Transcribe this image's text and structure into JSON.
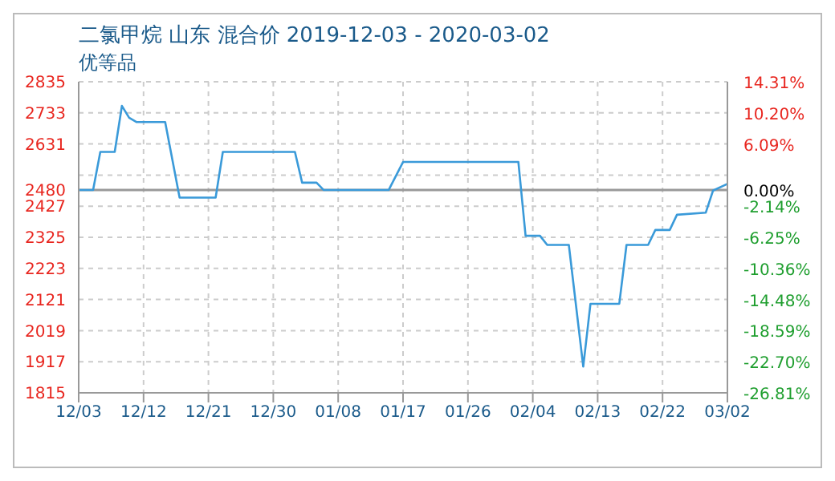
{
  "chart_data": {
    "type": "line",
    "title": "二氯甲烷 山东 混合价 2019-12-03 - 2020-03-02",
    "subtitle": "优等品",
    "x": [
      "2019-12-03",
      "2019-12-05",
      "2019-12-06",
      "2019-12-08",
      "2019-12-09",
      "2019-12-10",
      "2019-12-11",
      "2019-12-15",
      "2019-12-17",
      "2019-12-22",
      "2019-12-23",
      "2020-01-02",
      "2020-01-03",
      "2020-01-05",
      "2020-01-06",
      "2020-01-15",
      "2020-01-17",
      "2020-02-02",
      "2020-02-03",
      "2020-02-05",
      "2020-02-06",
      "2020-02-09",
      "2020-02-11",
      "2020-02-12",
      "2020-02-16",
      "2020-02-17",
      "2020-02-20",
      "2020-02-21",
      "2020-02-23",
      "2020-02-24",
      "2020-02-28",
      "2020-02-29",
      "2020-03-02"
    ],
    "series": [
      {
        "color": "#3a9ad9",
        "values": [
          2480,
          2480,
          2605,
          2605,
          2756,
          2717,
          2703,
          2703,
          2455,
          2455,
          2605,
          2605,
          2504,
          2504,
          2480,
          2480,
          2572,
          2572,
          2330,
          2330,
          2300,
          2300,
          1901,
          2107,
          2107,
          2300,
          2300,
          2349,
          2349,
          2399,
          2406,
          2478,
          2500
        ]
      }
    ],
    "xlim": [
      "2019-12-03",
      "2020-03-02"
    ],
    "xticks": [
      {
        "value": "2019-12-03",
        "label": "12/03"
      },
      {
        "value": "2019-12-12",
        "label": "12/12"
      },
      {
        "value": "2019-12-21",
        "label": "12/21"
      },
      {
        "value": "2019-12-30",
        "label": "12/30"
      },
      {
        "value": "2020-01-08",
        "label": "01/08"
      },
      {
        "value": "2020-01-17",
        "label": "01/17"
      },
      {
        "value": "2020-01-26",
        "label": "01/26"
      },
      {
        "value": "2020-02-04",
        "label": "02/04"
      },
      {
        "value": "2020-02-13",
        "label": "02/13"
      },
      {
        "value": "2020-02-22",
        "label": "02/22"
      },
      {
        "value": "2020-03-02",
        "label": "03/02"
      }
    ],
    "ylim": [
      1815,
      2835
    ],
    "yticks": [
      1815,
      1917,
      2019,
      2121,
      2223,
      2325,
      2427,
      2480,
      {
        "value": 2529,
        "label": null
      },
      2631,
      2733,
      2835
    ],
    "y2lim": [
      -26.81,
      14.31
    ],
    "y2ticks": [
      {
        "value": -26.81,
        "label": "-26.81%"
      },
      {
        "value": -22.7,
        "label": "-22.70%"
      },
      {
        "value": -18.59,
        "label": "-18.59%"
      },
      {
        "value": -14.48,
        "label": "-14.48%"
      },
      {
        "value": -10.36,
        "label": "-10.36%"
      },
      {
        "value": -6.25,
        "label": "-6.25%"
      },
      {
        "value": -2.14,
        "label": "-2.14%"
      },
      {
        "value": 0,
        "label": "0.00%"
      },
      {
        "value": 6.09,
        "label": "6.09%"
      },
      {
        "value": 10.2,
        "label": "10.20%"
      },
      {
        "value": 14.31,
        "label": "14.31%"
      }
    ],
    "ref_lines": [
      {
        "axis": "y",
        "value": 2480,
        "color": "#999999"
      }
    ],
    "grid": true,
    "marker": "none",
    "line_style": "solid"
  }
}
